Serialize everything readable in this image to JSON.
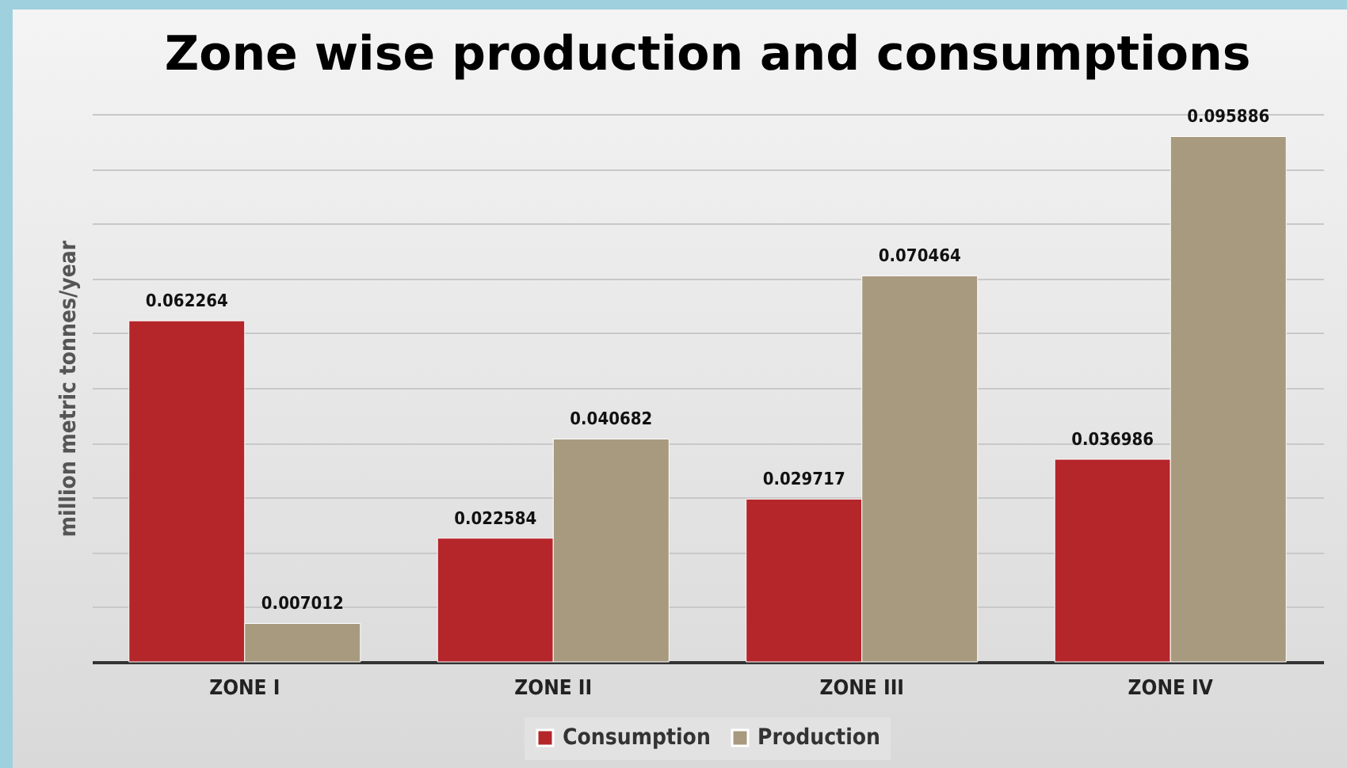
{
  "chart_data": {
    "type": "bar",
    "title": "Zone wise production and consumptions",
    "ylabel": "million metric tonnes/year",
    "categories": [
      "ZONE I",
      "ZONE II",
      "ZONE III",
      "ZONE IV"
    ],
    "series": [
      {
        "name": "Consumption",
        "color": "#b5262a",
        "values": [
          0.062264,
          0.022584,
          0.029717,
          0.036986
        ]
      },
      {
        "name": "Production",
        "color": "#a89a7f",
        "values": [
          0.007012,
          0.040682,
          0.070464,
          0.095886
        ]
      }
    ],
    "ylim": [
      0,
      0.1
    ],
    "yticks": [
      {
        "value": 0,
        "label": null
      },
      {
        "value": 0.01,
        "label": null
      },
      {
        "value": 0.02,
        "label": null
      },
      {
        "value": 0.03,
        "label": null
      },
      {
        "value": 0.04,
        "label": null
      },
      {
        "value": 0.05,
        "label": null
      },
      {
        "value": 0.06,
        "label": null
      },
      {
        "value": 0.07,
        "label": null
      },
      {
        "value": 0.08,
        "label": null
      },
      {
        "value": 0.09,
        "label": null
      },
      {
        "value": 0.1,
        "label": null
      }
    ],
    "grid": "y",
    "legend": "bottom",
    "tick_labels": "x",
    "data_labels": true
  }
}
